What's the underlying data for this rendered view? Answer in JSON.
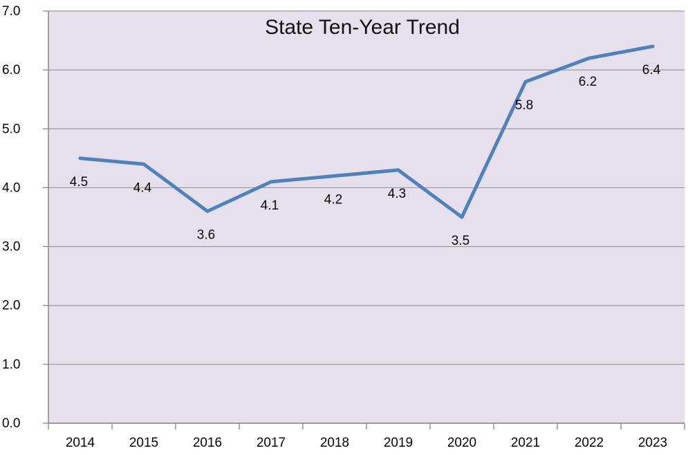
{
  "chart_data": {
    "type": "line",
    "title": "State Ten-Year Trend",
    "xlabel": "",
    "ylabel": "",
    "categories": [
      "2014",
      "2015",
      "2016",
      "2017",
      "2018",
      "2019",
      "2020",
      "2021",
      "2022",
      "2023"
    ],
    "series": [
      {
        "values": [
          4.5,
          4.4,
          3.6,
          4.1,
          4.2,
          4.3,
          3.5,
          5.8,
          6.2,
          6.4
        ],
        "data_labels": [
          "4.5",
          "4.4",
          "3.6",
          "4.1",
          "4.2",
          "4.3",
          "3.5",
          "5.8",
          "6.2",
          "6.4"
        ],
        "color": "#4f81bd"
      }
    ],
    "ylim": [
      0,
      7
    ],
    "y_ticks": [
      "0.0",
      "1.0",
      "2.0",
      "3.0",
      "4.0",
      "5.0",
      "6.0",
      "7.0"
    ],
    "grid": true,
    "legend": "none",
    "colors": {
      "plot_background": "#e6e0ec",
      "gridline": "#9a9a9a",
      "axis": "#7f7f7f"
    }
  }
}
